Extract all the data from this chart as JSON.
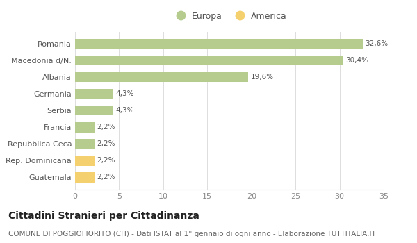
{
  "categories": [
    "Guatemala",
    "Rep. Dominicana",
    "Repubblica Ceca",
    "Francia",
    "Serbia",
    "Germania",
    "Albania",
    "Macedonia d/N.",
    "Romania"
  ],
  "values": [
    2.2,
    2.2,
    2.2,
    2.2,
    4.3,
    4.3,
    19.6,
    30.4,
    32.6
  ],
  "labels": [
    "2,2%",
    "2,2%",
    "2,2%",
    "2,2%",
    "4,3%",
    "4,3%",
    "19,6%",
    "30,4%",
    "32,6%"
  ],
  "colors": [
    "#f5d06e",
    "#f5d06e",
    "#b5cc8e",
    "#b5cc8e",
    "#b5cc8e",
    "#b5cc8e",
    "#b5cc8e",
    "#b5cc8e",
    "#b5cc8e"
  ],
  "legend_labels": [
    "Europa",
    "America"
  ],
  "legend_colors": [
    "#b5cc8e",
    "#f5d06e"
  ],
  "title": "Cittadini Stranieri per Cittadinanza",
  "subtitle": "COMUNE DI POGGIOFIORITO (CH) - Dati ISTAT al 1° gennaio di ogni anno - Elaborazione TUTTITALIA.IT",
  "xlim": [
    0,
    35
  ],
  "xticks": [
    0,
    5,
    10,
    15,
    20,
    25,
    30,
    35
  ],
  "background_color": "#ffffff",
  "title_fontsize": 10,
  "subtitle_fontsize": 7.5,
  "label_fontsize": 7.5,
  "tick_fontsize": 8,
  "legend_fontsize": 9
}
